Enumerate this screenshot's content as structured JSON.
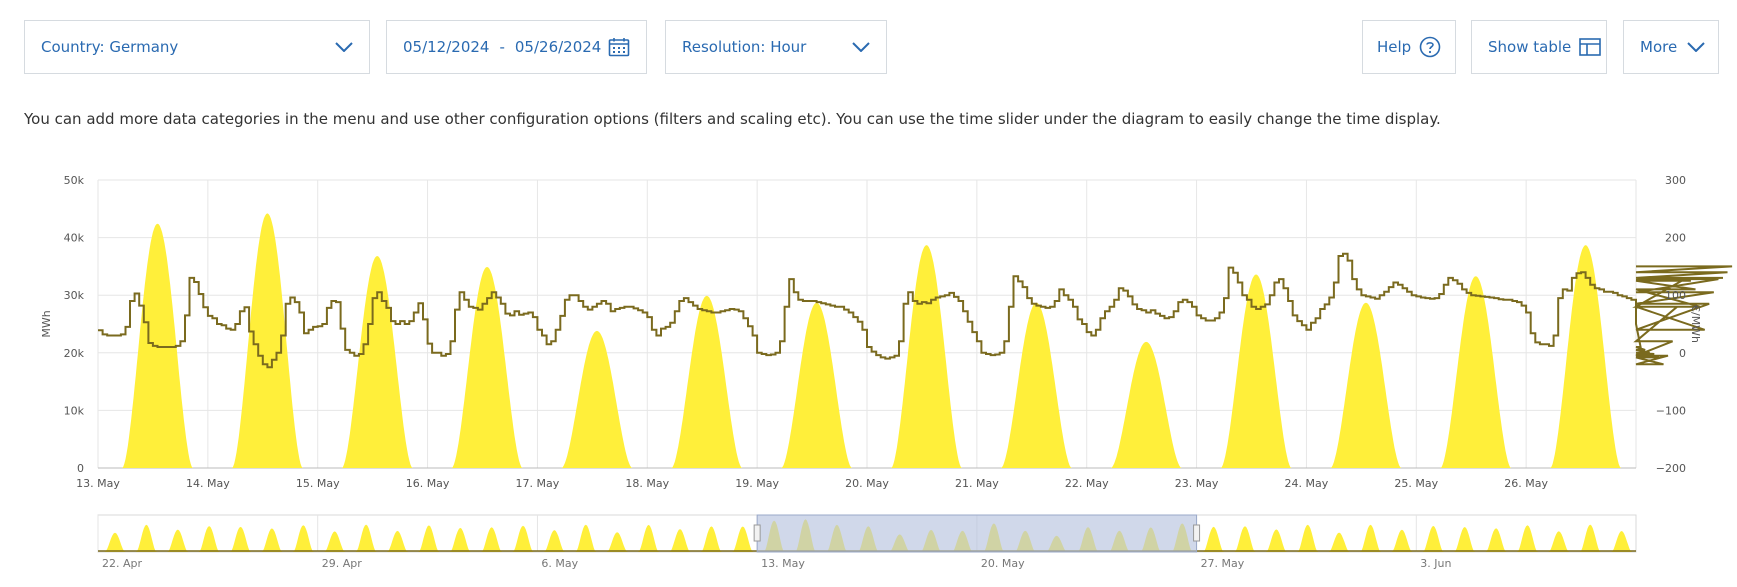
{
  "controls": {
    "country_label": "Country: Germany",
    "date_from": "05/12/2024",
    "date_sep": "-",
    "date_to": "05/26/2024",
    "resolution_label": "Resolution: Hour",
    "help_label": "Help",
    "show_table_label": "Show table",
    "more_label": "More"
  },
  "info_text": "You can add more data categories in the menu and use other configuration options (filters and scaling etc). You can use the time slider under the diagram to easily change the time display.",
  "colors": {
    "accent": "#2a6ab1",
    "solar": "#ffef3a",
    "price": "#7a6a1e",
    "grid": "#e6e6e6",
    "selection": "#b7c3df"
  },
  "chart_data": {
    "type": "area",
    "x_unit": "day",
    "x_ticks": [
      "13. May",
      "14. May",
      "15. May",
      "16. May",
      "17. May",
      "18. May",
      "19. May",
      "20. May",
      "21. May",
      "22. May",
      "23. May",
      "24. May",
      "25. May",
      "26. May"
    ],
    "ylabel_left": "MWh",
    "ylabel_right": "€/MWh",
    "ylim_left": [
      0,
      50000
    ],
    "ylim_right": [
      -200,
      300
    ],
    "y_ticks_left": [
      "0",
      "10k",
      "20k",
      "30k",
      "40k",
      "50k"
    ],
    "y_ticks_right": [
      "−200",
      "−100",
      "0",
      "100",
      "200",
      "300"
    ],
    "grid": true,
    "series": [
      {
        "type": "area",
        "axis": "left",
        "unit": "MWh",
        "daily_peak": [
          42400,
          44200,
          36800,
          34900,
          23800,
          29900,
          28700,
          38700,
          28700,
          21900,
          33600,
          28700,
          33300,
          38700
        ]
      },
      {
        "type": "step-line",
        "axis": "right",
        "unit": "€/MWh",
        "hourly": [
          39,
          32,
          30,
          30,
          30,
          32,
          45,
          90,
          103,
          82,
          53,
          17,
          12,
          10,
          10,
          10,
          10,
          12,
          20,
          65,
          130,
          123,
          102,
          79,
          64,
          60,
          50,
          48,
          42,
          40,
          50,
          72,
          79,
          37,
          15,
          -5,
          -20,
          -25,
          -12,
          0,
          30,
          85,
          96,
          88,
          70,
          34,
          40,
          45,
          46,
          50,
          78,
          90,
          88,
          42,
          5,
          0,
          -5,
          -2,
          15,
          50,
          95,
          105,
          90,
          78,
          55,
          50,
          55,
          50,
          55,
          70,
          86,
          58,
          16,
          0,
          0,
          -5,
          -2,
          20,
          75,
          105,
          92,
          80,
          78,
          75,
          85,
          95,
          105,
          96,
          85,
          68,
          65,
          72,
          66,
          68,
          70,
          62,
          40,
          30,
          15,
          20,
          40,
          64,
          92,
          100,
          100,
          90,
          80,
          75,
          80,
          85,
          90,
          85,
          72,
          76,
          78,
          80,
          80,
          77,
          74,
          70,
          62,
          40,
          30,
          42,
          45,
          52,
          72,
          90,
          95,
          88,
          82,
          76,
          74,
          72,
          70,
          70,
          72,
          74,
          76,
          75,
          72,
          60,
          46,
          30,
          0,
          -2,
          -4,
          -3,
          0,
          20,
          80,
          128,
          105,
          92,
          90,
          90,
          90,
          88,
          86,
          84,
          82,
          80,
          80,
          75,
          70,
          62,
          54,
          40,
          10,
          2,
          -4,
          -8,
          -10,
          -8,
          -5,
          20,
          85,
          105,
          90,
          85,
          88,
          86,
          92,
          96,
          98,
          100,
          104,
          97,
          90,
          72,
          54,
          36,
          20,
          0,
          -2,
          -4,
          -3,
          0,
          20,
          80,
          133,
          124,
          114,
          95,
          85,
          82,
          80,
          78,
          80,
          90,
          110,
          100,
          92,
          80,
          58,
          50,
          36,
          30,
          40,
          60,
          72,
          80,
          92,
          112,
          108,
          98,
          84,
          76,
          74,
          70,
          74,
          68,
          64,
          60,
          62,
          72,
          88,
          92,
          88,
          80,
          65,
          60,
          56,
          56,
          60,
          70,
          95,
          148,
          139,
          122,
          100,
          92,
          80,
          76,
          80,
          84,
          100,
          122,
          128,
          112,
          90,
          65,
          55,
          48,
          40,
          52,
          60,
          76,
          84,
          96,
          122,
          168,
          172,
          160,
          128,
          110,
          100,
          98,
          96,
          94,
          100,
          106,
          114,
          122,
          118,
          112,
          106,
          100,
          98,
          96,
          95,
          94,
          95,
          102,
          118,
          130,
          126,
          120,
          110,
          104,
          100,
          99,
          98,
          97,
          96,
          95,
          93,
          92,
          92,
          90,
          88,
          82,
          70,
          34,
          18,
          15,
          15,
          12,
          30,
          95,
          110,
          108,
          130,
          138,
          140,
          130,
          118,
          112,
          110,
          106,
          106,
          104,
          100,
          98,
          95,
          92,
          50,
          10,
          5,
          0,
          -2,
          -8,
          -20,
          -5,
          20,
          80,
          125,
          130,
          125,
          110,
          80,
          40,
          85,
          105,
          128,
          130,
          140,
          150
        ]
      }
    ],
    "navigator": {
      "x_ticks": [
        "22. Apr",
        "29. Apr",
        "6. May",
        "13. May",
        "20. May",
        "27. May",
        "3. Jun"
      ],
      "selected_range": [
        "13. May",
        "26. May"
      ]
    }
  }
}
